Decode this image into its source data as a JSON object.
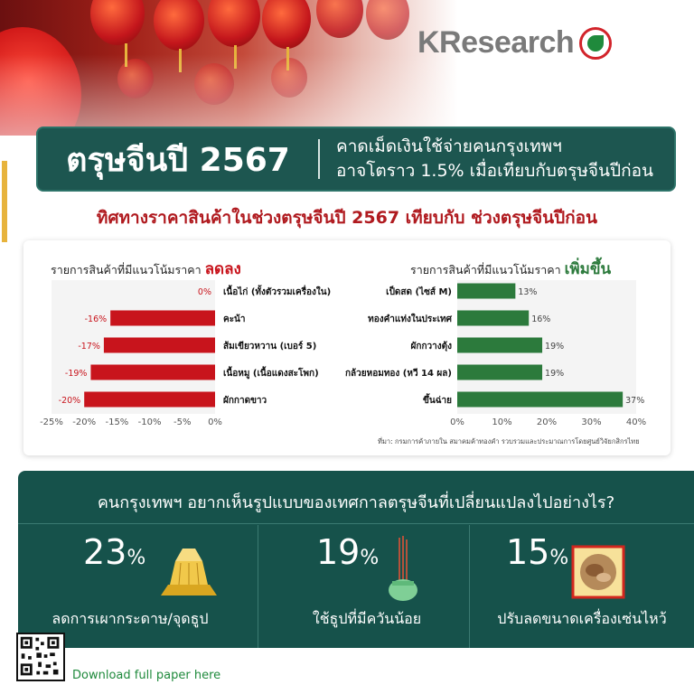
{
  "brand": {
    "logo_text": "KResearch"
  },
  "banner": {
    "title": "ตรุษจีนปี 2567",
    "subtitle_line1": "คาดเม็ดเงินใช้จ่ายคนกรุงเทพฯ",
    "subtitle_line2": "อาจโตราว 1.5% เมื่อเทียบกับตรุษจีนปีก่อน"
  },
  "headline": "ทิศทางราคาสินค้าในช่วงตรุษจีนปี 2567 เทียบกับ ช่วงตรุษจีนปีก่อน",
  "chart_data": [
    {
      "type": "bar",
      "orientation": "horizontal",
      "title_prefix": "รายการสินค้าที่มีแนวโน้มราคา",
      "title_highlight": "ลดลง",
      "categories": [
        "เนื้อไก่ (ทั้งตัวรวมเครื่องใน)",
        "คะน้า",
        "ส้มเขียวหวาน (เบอร์ 5)",
        "เนื้อหมู (เนื้อแดงสะโพก)",
        "ผักกาดขาว"
      ],
      "values": [
        0,
        -16,
        -17,
        -19,
        -20
      ],
      "value_labels": [
        "0%",
        "-16%",
        "-17%",
        "-19%",
        "-20%"
      ],
      "xlim": [
        -25,
        0
      ],
      "ticks": [
        "-25%",
        "-20%",
        "-15%",
        "-10%",
        "-5%",
        "0%"
      ],
      "color": "#c8141c"
    },
    {
      "type": "bar",
      "orientation": "horizontal",
      "title_prefix": "รายการสินค้าที่มีแนวโน้มราคา",
      "title_highlight": "เพิ่มขึ้น",
      "categories": [
        "เป็ดสด (ไซส์ M)",
        "ทองคำแท่งในประเทศ",
        "ผักกวางตุ้ง",
        "กล้วยหอมทอง (หวี 14 ผล)",
        "ขึ้นฉ่าย"
      ],
      "values": [
        13,
        16,
        19,
        19,
        37
      ],
      "value_labels": [
        "13%",
        "16%",
        "19%",
        "19%",
        "37%"
      ],
      "xlim": [
        0,
        40
      ],
      "ticks": [
        "0%",
        "10%",
        "20%",
        "30%",
        "40%"
      ],
      "color": "#2c7a3c"
    }
  ],
  "source_note": "ที่มา: กรมการค้าภายใน สมาคมค้าทองคำ รวบรวมและประมาณการโดยศูนย์วิจัยกสิกรไทย",
  "panel": {
    "question": "คนกรุงเทพฯ อยากเห็นรูปแบบของเทศกาลตรุษจีนที่เปลี่ยนแปลงไปอย่างไร?",
    "stats": [
      {
        "value": "23",
        "unit": "%",
        "label": "ลดการเผากระดาษ/จุดธูป",
        "icon": "paper-offering-icon"
      },
      {
        "value": "19",
        "unit": "%",
        "label": "ใช้ธูปที่มีควันน้อย",
        "icon": "incense-icon"
      },
      {
        "value": "15",
        "unit": "%",
        "label": "ปรับลดขนาดเครื่องเซ่นไหว้",
        "icon": "offering-plate-icon"
      }
    ]
  },
  "footer": {
    "download_label": "Download full paper here",
    "qr_icon": "qr-code-icon"
  },
  "colors": {
    "teal": "#1d5650",
    "red": "#c8141c",
    "green": "#2c7a3c"
  }
}
